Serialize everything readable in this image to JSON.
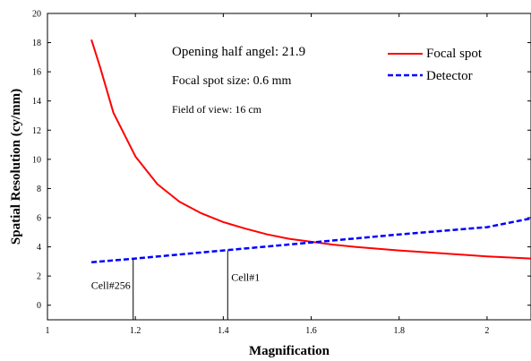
{
  "chart_data": {
    "type": "line",
    "title": "",
    "xlabel": "Magnification",
    "ylabel": "Spatial Resolution (cy/mm)",
    "xlim": [
      1,
      2.1
    ],
    "ylim": [
      -1,
      20
    ],
    "x_ticks": [
      1,
      1.2,
      1.4,
      1.6,
      1.8,
      2
    ],
    "x_tick_labels": [
      "1",
      "1.2",
      "1.4",
      "1.6",
      "1.8",
      "2"
    ],
    "y_ticks": [
      0,
      2,
      4,
      6,
      8,
      10,
      12,
      14,
      16,
      18,
      20
    ],
    "y_tick_labels": [
      "0",
      "2",
      "4",
      "6",
      "8",
      "10",
      "12",
      "14",
      "16",
      "18",
      "20"
    ],
    "grid": false,
    "legend_position": "top-right",
    "series": [
      {
        "name": "Focal spot",
        "style": "solid",
        "color": "#ff0000",
        "x": [
          1.1,
          1.12,
          1.15,
          1.2,
          1.25,
          1.3,
          1.35,
          1.4,
          1.45,
          1.5,
          1.55,
          1.6,
          1.65,
          1.7,
          1.8,
          1.9,
          2.0,
          2.1
        ],
        "y": [
          18.2,
          16.3,
          13.2,
          10.2,
          8.3,
          7.1,
          6.3,
          5.7,
          5.25,
          4.85,
          4.55,
          4.35,
          4.15,
          4.0,
          3.75,
          3.55,
          3.35,
          3.2
        ]
      },
      {
        "name": "Detector",
        "style": "dashed",
        "color": "#0000ff",
        "x": [
          1.1,
          1.2,
          1.4,
          1.6,
          1.8,
          2.0,
          2.1
        ],
        "y": [
          2.95,
          3.2,
          3.75,
          4.3,
          4.85,
          5.35,
          5.95
        ]
      }
    ],
    "annotations": [
      {
        "text": "Opening half angel:  21.9",
        "size": "large"
      },
      {
        "text": "Focal spot size: 0.6 mm",
        "size": "medium"
      },
      {
        "text": "Field of view: 16 cm",
        "size": "small"
      }
    ],
    "markers": [
      {
        "label": "Cell#256",
        "x": 1.195,
        "y_from": -1,
        "y_to": 3.2,
        "label_side": "left"
      },
      {
        "label": "Cell#1",
        "x": 1.41,
        "y_from": -1,
        "y_to": 3.75,
        "label_side": "right"
      }
    ]
  }
}
